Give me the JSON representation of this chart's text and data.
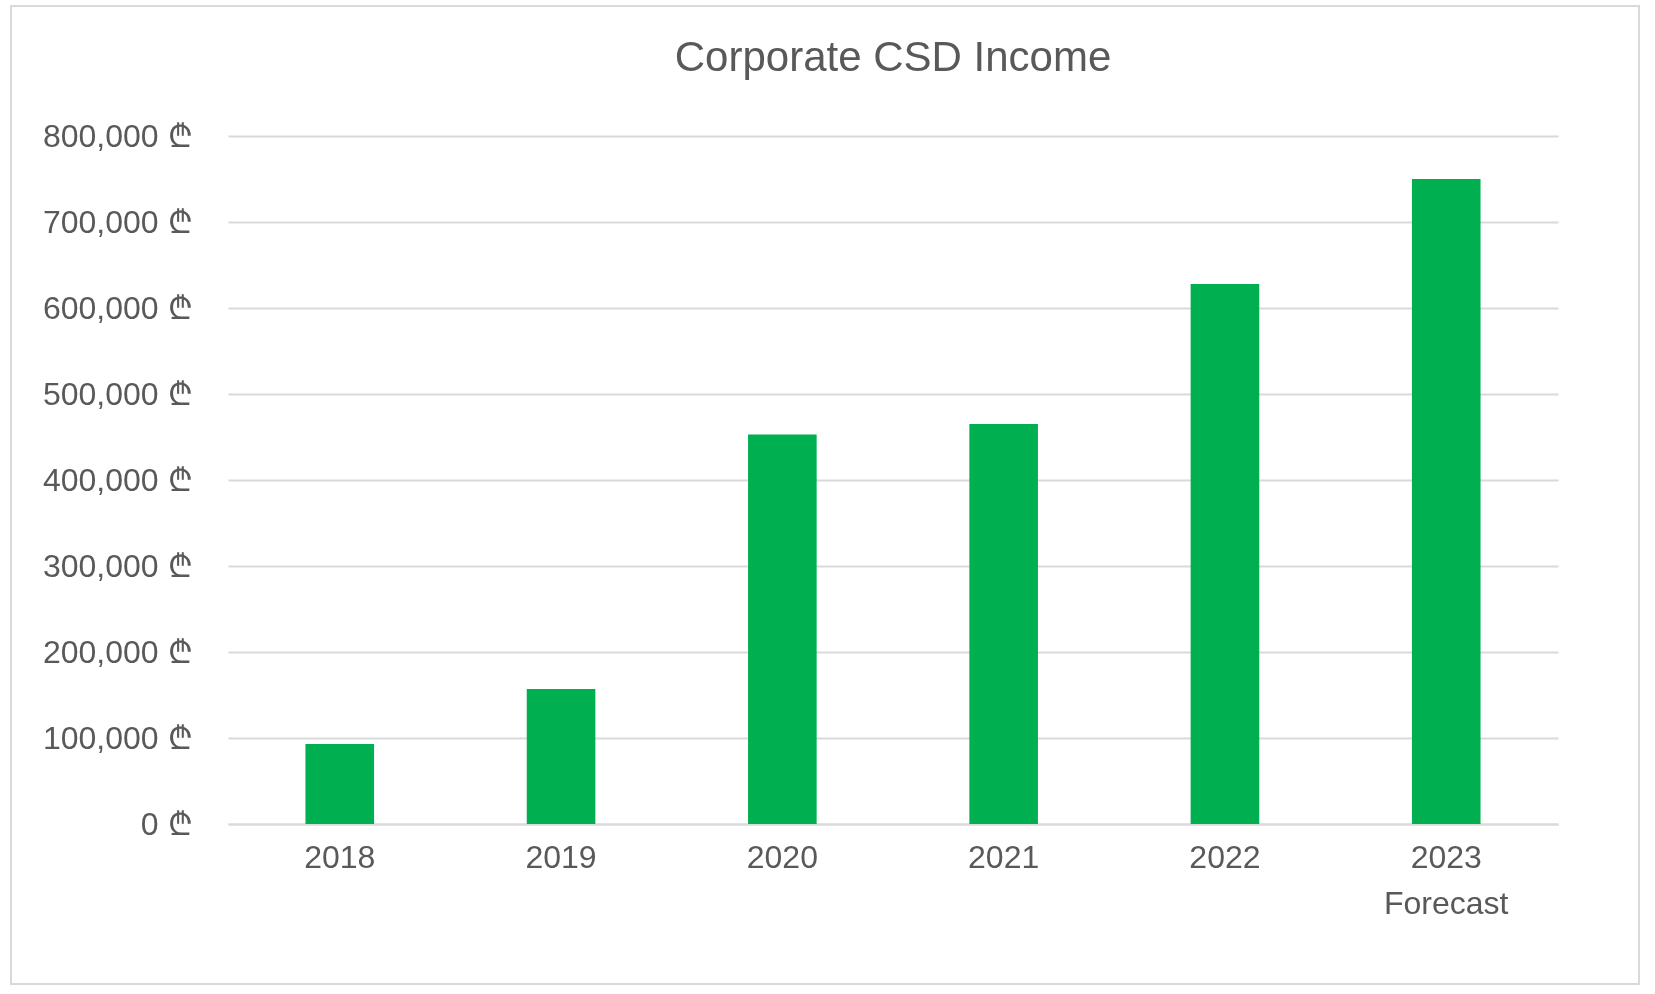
{
  "chart_data": {
    "type": "bar",
    "title": "Corporate CSD Income",
    "categories": [
      "2018",
      "2019",
      "2020",
      "2021",
      "2022",
      "2023\nForecast"
    ],
    "values": [
      93000,
      157000,
      453000,
      465000,
      628000,
      750000
    ],
    "color": "#00b050",
    "ylim": [
      0,
      800000
    ],
    "yticks": [
      {
        "value": 0,
        "label": "0 ₾"
      },
      {
        "value": 100000,
        "label": "100,000 ₾"
      },
      {
        "value": 200000,
        "label": "200,000 ₾"
      },
      {
        "value": 300000,
        "label": "300,000 ₾"
      },
      {
        "value": 400000,
        "label": "400,000 ₾"
      },
      {
        "value": 500000,
        "label": "500,000 ₾"
      },
      {
        "value": 600000,
        "label": "600,000 ₾"
      },
      {
        "value": 700000,
        "label": "700,000 ₾"
      },
      {
        "value": 800000,
        "label": "800,000 ₾"
      }
    ],
    "grid": "y"
  }
}
